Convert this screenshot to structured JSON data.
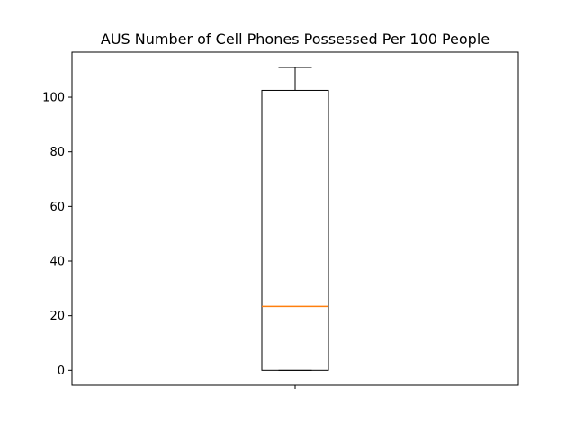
{
  "chart_data": {
    "type": "box",
    "title": "AUS Number of Cell Phones Possessed Per 100 People",
    "xlabel": "",
    "ylabel": "",
    "ylim": [
      -5.5,
      116.5
    ],
    "yticks": [
      0,
      20,
      40,
      60,
      80,
      100
    ],
    "grid": false,
    "legend": "none",
    "boxes": [
      {
        "whisker_low": 0,
        "q1": 0,
        "median": 23.4,
        "q3": 102.5,
        "whisker_high": 110.9
      }
    ],
    "colors": {
      "box": "#000000",
      "median": "#ff7f0e"
    }
  }
}
